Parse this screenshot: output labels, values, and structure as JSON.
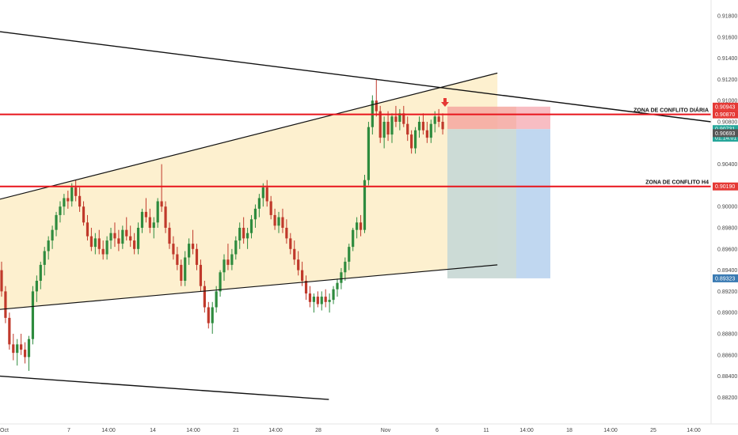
{
  "chart_data": {
    "type": "candlestick",
    "x_tick_labels": [
      "Oct",
      "7",
      "14:00",
      "14",
      "14:00",
      "21",
      "14:00",
      "28",
      "Nov",
      "6",
      "11",
      "14:00",
      "18",
      "14:00",
      "25",
      "14:00"
    ],
    "y_tick_labels": [
      "0.91800",
      "0.91600",
      "0.91400",
      "0.91200",
      "0.91000",
      "0.90800",
      "0.90400",
      "0.90200",
      "0.90000",
      "0.89800",
      "0.89600",
      "0.89400",
      "0.89200",
      "0.89000",
      "0.88800",
      "0.88600",
      "0.88400",
      "0.88200"
    ],
    "ylim": [
      0.8818,
      0.9195
    ],
    "grid": false,
    "price_badges": [
      {
        "value": 0.90943,
        "label": "0.90943",
        "color": "#e53935"
      },
      {
        "value": 0.9087,
        "label": "0.90870",
        "color": "#e53935"
      },
      {
        "value": 0.90731,
        "label": "0.90731",
        "color": "#26a69a"
      },
      {
        "value": 0.9065,
        "label": "01:14:01",
        "color": "#26a69a"
      },
      {
        "value": 0.90693,
        "label": "0.90693",
        "color": "#555555"
      },
      {
        "value": 0.9019,
        "label": "0.90190",
        "color": "#e53935"
      },
      {
        "value": 0.89323,
        "label": "0.89323",
        "color": "#3b7bb3"
      }
    ],
    "zones": [
      {
        "label": "ZONA DE CONFLITO DIÁRIA",
        "value": 0.9087
      },
      {
        "label": "ZONA DE CONFLITO H4",
        "value": 0.9019
      }
    ],
    "position": {
      "entry": 0.90731,
      "stop": 0.90943,
      "target": 0.89323
    },
    "channel": {
      "upper": [
        [
          0,
          0.9007
        ],
        [
          0.6995,
          0.9126
        ]
      ],
      "lower": [
        [
          0,
          0.8903
        ],
        [
          0.6995,
          0.8945
        ]
      ]
    },
    "outer_lines": [
      {
        "from": [
          0,
          0.9165
        ],
        "to": [
          1.0,
          0.908
        ]
      },
      {
        "from": [
          0,
          0.884
        ],
        "to": [
          0.4625,
          0.8818
        ]
      }
    ],
    "colors": {
      "up": "#2e8b3e",
      "down": "#c0392b",
      "channel_fill": "#fdf0cf",
      "zone_line": "#e8141c",
      "trend_line": "#111111",
      "stop_fill": "#f7b6bd",
      "target_fill": "#b9d3ee",
      "arrow": "#e53935"
    },
    "ohlc": [
      [
        0.894,
        0.8948,
        0.8915,
        0.892
      ],
      [
        0.892,
        0.8925,
        0.889,
        0.8895
      ],
      [
        0.8895,
        0.89,
        0.8865,
        0.887
      ],
      [
        0.887,
        0.888,
        0.8855,
        0.8862
      ],
      [
        0.8862,
        0.8875,
        0.885,
        0.887
      ],
      [
        0.887,
        0.888,
        0.886,
        0.8865
      ],
      [
        0.8865,
        0.8872,
        0.8852,
        0.8858
      ],
      [
        0.8858,
        0.8878,
        0.8845,
        0.8875
      ],
      [
        0.8875,
        0.8925,
        0.887,
        0.892
      ],
      [
        0.892,
        0.8935,
        0.891,
        0.893
      ],
      [
        0.893,
        0.8948,
        0.8922,
        0.8945
      ],
      [
        0.8945,
        0.8962,
        0.8935,
        0.8958
      ],
      [
        0.8958,
        0.8972,
        0.895,
        0.8968
      ],
      [
        0.8968,
        0.8982,
        0.896,
        0.8978
      ],
      [
        0.8978,
        0.8995,
        0.8972,
        0.8992
      ],
      [
        0.8992,
        0.9005,
        0.8985,
        0.9
      ],
      [
        0.9,
        0.9012,
        0.8992,
        0.9008
      ],
      [
        0.9008,
        0.9015,
        0.8998,
        0.9005
      ],
      [
        0.9005,
        0.9022,
        0.9,
        0.9018
      ],
      [
        0.9018,
        0.9025,
        0.9005,
        0.901
      ],
      [
        0.901,
        0.9018,
        0.8995,
        0.9
      ],
      [
        0.9,
        0.9005,
        0.8982,
        0.8985
      ],
      [
        0.8985,
        0.8992,
        0.8968,
        0.8972
      ],
      [
        0.8972,
        0.898,
        0.8958,
        0.8962
      ],
      [
        0.8962,
        0.8975,
        0.8955,
        0.897
      ],
      [
        0.897,
        0.8978,
        0.8955,
        0.896
      ],
      [
        0.896,
        0.8968,
        0.895,
        0.8955
      ],
      [
        0.8955,
        0.8972,
        0.895,
        0.8968
      ],
      [
        0.8968,
        0.898,
        0.896,
        0.8975
      ],
      [
        0.8975,
        0.8985,
        0.8962,
        0.897
      ],
      [
        0.897,
        0.8978,
        0.8958,
        0.8965
      ],
      [
        0.8965,
        0.8982,
        0.896,
        0.8978
      ],
      [
        0.8978,
        0.899,
        0.8968,
        0.8972
      ],
      [
        0.8972,
        0.8982,
        0.8962,
        0.8968
      ],
      [
        0.8968,
        0.8975,
        0.8955,
        0.896
      ],
      [
        0.896,
        0.8985,
        0.8955,
        0.898
      ],
      [
        0.898,
        0.8998,
        0.8975,
        0.8995
      ],
      [
        0.8995,
        0.9008,
        0.8985,
        0.899
      ],
      [
        0.899,
        0.8998,
        0.8975,
        0.898
      ],
      [
        0.898,
        0.899,
        0.897,
        0.8985
      ],
      [
        0.8985,
        0.9008,
        0.898,
        0.9005
      ],
      [
        0.9005,
        0.904,
        0.8995,
        0.9
      ],
      [
        0.9,
        0.9005,
        0.8975,
        0.898
      ],
      [
        0.898,
        0.8985,
        0.896,
        0.8965
      ],
      [
        0.8965,
        0.8972,
        0.895,
        0.8955
      ],
      [
        0.8955,
        0.8962,
        0.894,
        0.8945
      ],
      [
        0.8945,
        0.895,
        0.8925,
        0.893
      ],
      [
        0.893,
        0.8958,
        0.8925,
        0.8952
      ],
      [
        0.8952,
        0.897,
        0.8945,
        0.8965
      ],
      [
        0.8965,
        0.8978,
        0.8955,
        0.896
      ],
      [
        0.896,
        0.8965,
        0.894,
        0.8945
      ],
      [
        0.8945,
        0.895,
        0.892,
        0.8925
      ],
      [
        0.8925,
        0.893,
        0.89,
        0.8905
      ],
      [
        0.8905,
        0.891,
        0.8885,
        0.889
      ],
      [
        0.889,
        0.891,
        0.888,
        0.8905
      ],
      [
        0.8905,
        0.8925,
        0.89,
        0.892
      ],
      [
        0.892,
        0.894,
        0.8915,
        0.8938
      ],
      [
        0.8938,
        0.8955,
        0.893,
        0.895
      ],
      [
        0.895,
        0.8965,
        0.894,
        0.8945
      ],
      [
        0.8945,
        0.896,
        0.894,
        0.8955
      ],
      [
        0.8955,
        0.8972,
        0.895,
        0.8968
      ],
      [
        0.8968,
        0.8985,
        0.896,
        0.898
      ],
      [
        0.898,
        0.899,
        0.8965,
        0.897
      ],
      [
        0.897,
        0.898,
        0.896,
        0.8975
      ],
      [
        0.8975,
        0.8992,
        0.897,
        0.8988
      ],
      [
        0.8988,
        0.9002,
        0.898,
        0.8998
      ],
      [
        0.8998,
        0.9012,
        0.899,
        0.9008
      ],
      [
        0.9008,
        0.9022,
        0.9,
        0.9018
      ],
      [
        0.9018,
        0.9025,
        0.9,
        0.9005
      ],
      [
        0.9005,
        0.901,
        0.8988,
        0.8992
      ],
      [
        0.8992,
        0.8998,
        0.8978,
        0.8982
      ],
      [
        0.8982,
        0.8995,
        0.8975,
        0.899
      ],
      [
        0.899,
        0.8998,
        0.8975,
        0.898
      ],
      [
        0.898,
        0.8988,
        0.8965,
        0.897
      ],
      [
        0.897,
        0.8975,
        0.8955,
        0.896
      ],
      [
        0.896,
        0.8968,
        0.8945,
        0.895
      ],
      [
        0.895,
        0.8958,
        0.8935,
        0.894
      ],
      [
        0.894,
        0.8948,
        0.8925,
        0.893
      ],
      [
        0.893,
        0.8935,
        0.8912,
        0.8918
      ],
      [
        0.8918,
        0.8925,
        0.8905,
        0.891
      ],
      [
        0.891,
        0.8918,
        0.89,
        0.8915
      ],
      [
        0.8915,
        0.892,
        0.8905,
        0.8908
      ],
      [
        0.8908,
        0.892,
        0.8902,
        0.8915
      ],
      [
        0.8915,
        0.8922,
        0.8905,
        0.891
      ],
      [
        0.891,
        0.8918,
        0.89,
        0.8912
      ],
      [
        0.8912,
        0.8925,
        0.8908,
        0.8922
      ],
      [
        0.8922,
        0.8932,
        0.8915,
        0.8928
      ],
      [
        0.8928,
        0.8942,
        0.8922,
        0.8938
      ],
      [
        0.8938,
        0.8952,
        0.893,
        0.8948
      ],
      [
        0.8948,
        0.8965,
        0.894,
        0.8962
      ],
      [
        0.8962,
        0.898,
        0.8958,
        0.8978
      ],
      [
        0.8978,
        0.899,
        0.897,
        0.8985
      ],
      [
        0.8985,
        0.8992,
        0.8972,
        0.8978
      ],
      [
        0.8978,
        0.903,
        0.8975,
        0.9025
      ],
      [
        0.9025,
        0.908,
        0.902,
        0.9075
      ],
      [
        0.9075,
        0.9105,
        0.9068,
        0.91
      ],
      [
        0.91,
        0.912,
        0.9085,
        0.909
      ],
      [
        0.909,
        0.9095,
        0.906,
        0.9065
      ],
      [
        0.9065,
        0.9085,
        0.9055,
        0.908
      ],
      [
        0.908,
        0.909,
        0.9062,
        0.9068
      ],
      [
        0.9068,
        0.9088,
        0.906,
        0.9085
      ],
      [
        0.9085,
        0.9095,
        0.9075,
        0.908
      ],
      [
        0.908,
        0.9092,
        0.9072,
        0.9088
      ],
      [
        0.9088,
        0.9095,
        0.9075,
        0.9078
      ],
      [
        0.9078,
        0.9085,
        0.9062,
        0.9068
      ],
      [
        0.9068,
        0.9072,
        0.905,
        0.9055
      ],
      [
        0.9055,
        0.9075,
        0.905,
        0.9072
      ],
      [
        0.9072,
        0.9085,
        0.9065,
        0.908
      ],
      [
        0.908,
        0.9088,
        0.9068,
        0.9072
      ],
      [
        0.9072,
        0.908,
        0.906,
        0.9065
      ],
      [
        0.9065,
        0.9082,
        0.906,
        0.9078
      ],
      [
        0.9078,
        0.909,
        0.907,
        0.9085
      ],
      [
        0.9085,
        0.9092,
        0.9075,
        0.908
      ],
      [
        0.908,
        0.9088,
        0.9068,
        0.9073
      ]
    ]
  }
}
